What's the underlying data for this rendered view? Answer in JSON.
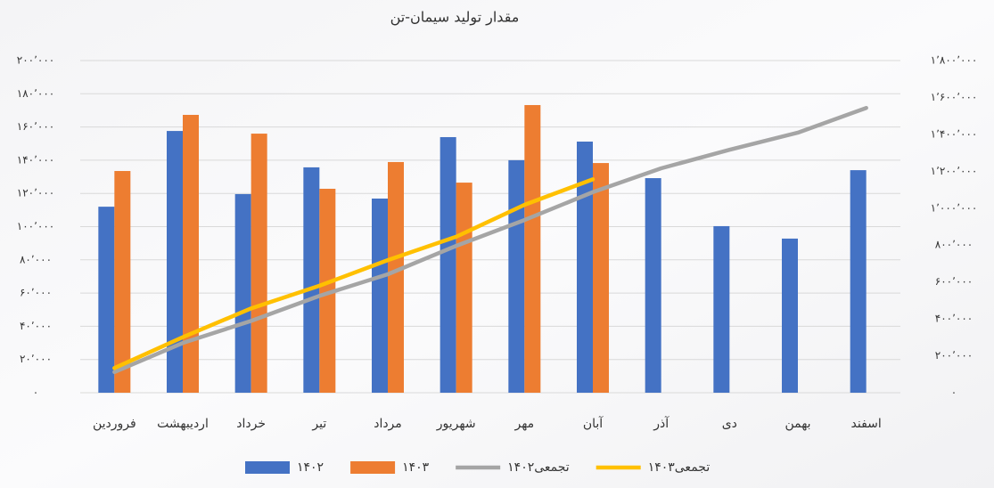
{
  "chart_data": {
    "type": "bar",
    "title": "مقدار تولید سیمان-تن",
    "categories": [
      "فروردین",
      "اردیبهشت",
      "خرداد",
      "تیر",
      "مرداد",
      "شهریور",
      "مهر",
      "آبان",
      "آذر",
      "دی",
      "بهمن",
      "اسفند"
    ],
    "series": [
      {
        "name": "۱۴۰۲",
        "type": "bar",
        "color": "#4472c4",
        "values": [
          112000,
          157600,
          119600,
          135700,
          116900,
          153900,
          140000,
          151200,
          129200,
          100300,
          92800,
          134000
        ]
      },
      {
        "name": "۱۴۰۳",
        "type": "bar",
        "color": "#ed7d31",
        "values": [
          133500,
          167300,
          156000,
          122800,
          138900,
          126500,
          173200,
          138300,
          null,
          null,
          null,
          null
        ]
      },
      {
        "name": "تجمعی۱۴۰۲",
        "type": "line",
        "axis": "y2",
        "color": "#a5a5a5",
        "values": [
          112000,
          269600,
          389200,
          524900,
          641800,
          795700,
          935700,
          1086900,
          1216100,
          1316400,
          1409200,
          1543200
        ]
      },
      {
        "name": "تجمعی۱۴۰۳",
        "type": "line",
        "axis": "y2",
        "color": "#ffc000",
        "values": [
          133500,
          300800,
          456800,
          579600,
          718500,
          845000,
          1018200,
          1156500,
          null,
          null,
          null,
          null
        ]
      }
    ],
    "ylim": [
      0,
      200000
    ],
    "yticks": [
      {
        "value": 0,
        "label": "۰"
      },
      {
        "value": 20000,
        "label": "۲۰٬۰۰۰"
      },
      {
        "value": 40000,
        "label": "۴۰٬۰۰۰"
      },
      {
        "value": 60000,
        "label": "۶۰٬۰۰۰"
      },
      {
        "value": 80000,
        "label": "۸۰٬۰۰۰"
      },
      {
        "value": 100000,
        "label": "۱۰۰٬۰۰۰"
      },
      {
        "value": 120000,
        "label": "۱۲۰٬۰۰۰"
      },
      {
        "value": 140000,
        "label": "۱۴۰٬۰۰۰"
      },
      {
        "value": 160000,
        "label": "۱۶۰٬۰۰۰"
      },
      {
        "value": 180000,
        "label": "۱۸۰٬۰۰۰"
      },
      {
        "value": 200000,
        "label": "۲۰۰٬۰۰۰"
      }
    ],
    "y2lim": [
      0,
      1800000
    ],
    "y2ticks": [
      {
        "value": 0,
        "label": "۰"
      },
      {
        "value": 200000,
        "label": "۲۰۰٬۰۰۰"
      },
      {
        "value": 400000,
        "label": "۴۰۰٬۰۰۰"
      },
      {
        "value": 600000,
        "label": "۶۰۰٬۰۰۰"
      },
      {
        "value": 800000,
        "label": "۸۰۰٬۰۰۰"
      },
      {
        "value": 1000000,
        "label": "۱٬۰۰۰٬۰۰۰"
      },
      {
        "value": 1200000,
        "label": "۱٬۲۰۰٬۰۰۰"
      },
      {
        "value": 1400000,
        "label": "۱٬۴۰۰٬۰۰۰"
      },
      {
        "value": 1600000,
        "label": "۱٬۶۰۰٬۰۰۰"
      },
      {
        "value": 1800000,
        "label": "۱٬۸۰۰٬۰۰۰"
      }
    ],
    "grid": true
  }
}
